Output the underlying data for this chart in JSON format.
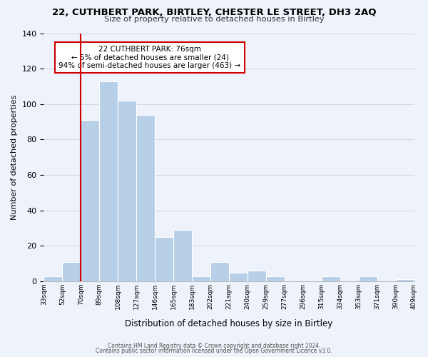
{
  "title": "22, CUTHBERT PARK, BIRTLEY, CHESTER LE STREET, DH3 2AQ",
  "subtitle": "Size of property relative to detached houses in Birtley",
  "xlabel": "Distribution of detached houses by size in Birtley",
  "ylabel": "Number of detached properties",
  "bar_values": [
    3,
    11,
    91,
    113,
    102,
    94,
    25,
    29,
    3,
    11,
    5,
    6,
    3,
    0,
    0,
    3,
    0,
    3,
    0,
    1
  ],
  "bin_labels": [
    "33sqm",
    "52sqm",
    "70sqm",
    "89sqm",
    "108sqm",
    "127sqm",
    "146sqm",
    "165sqm",
    "183sqm",
    "202sqm",
    "221sqm",
    "240sqm",
    "259sqm",
    "277sqm",
    "296sqm",
    "315sqm",
    "334sqm",
    "353sqm",
    "371sqm",
    "390sqm",
    "409sqm"
  ],
  "bar_color": "#b8cfe8",
  "bar_edge_color": "#ffffff",
  "vline_x_index": 2,
  "vline_color": "#cc0000",
  "annotation_title": "22 CUTHBERT PARK: 76sqm",
  "annotation_line2": "← 5% of detached houses are smaller (24)",
  "annotation_line3": "94% of semi-detached houses are larger (463) →",
  "annotation_box_color": "#ffffff",
  "annotation_box_edge": "#cc0000",
  "ylim": [
    0,
    140
  ],
  "yticks": [
    0,
    20,
    40,
    60,
    80,
    100,
    120,
    140
  ],
  "grid_color": "#d0d8e8",
  "background_color": "#eef2fa",
  "footer1": "Contains HM Land Registry data © Crown copyright and database right 2024.",
  "footer2": "Contains public sector information licensed under the Open Government Licence v3.0."
}
